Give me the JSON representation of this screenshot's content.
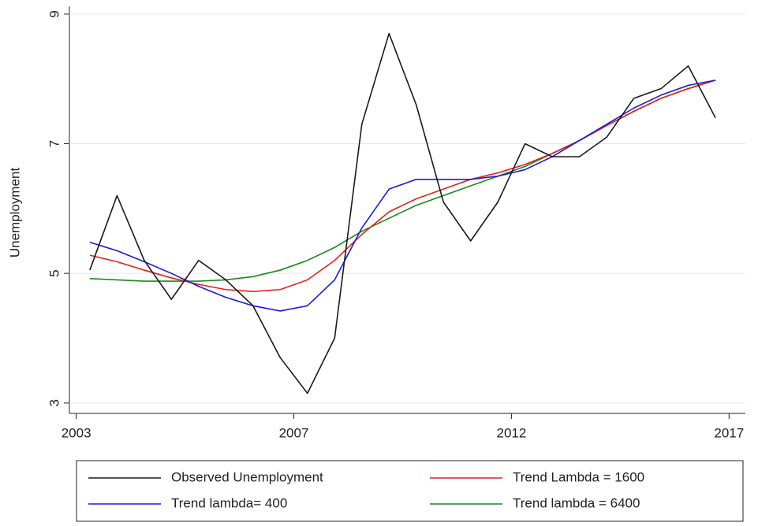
{
  "chart_data": {
    "type": "line",
    "y_label": "Unemployment",
    "x": [
      1,
      3,
      5,
      7,
      9,
      11,
      13,
      15,
      17,
      19,
      21,
      23,
      25,
      27,
      29,
      31,
      33,
      35,
      37,
      39,
      41,
      43,
      45,
      47
    ],
    "series": [
      {
        "name": "Observed Unemployment",
        "color": "#1a1a1a",
        "values": [
          5.05,
          6.2,
          5.2,
          4.6,
          5.2,
          4.9,
          4.5,
          3.7,
          3.15,
          4.0,
          7.3,
          8.7,
          7.6,
          6.1,
          5.5,
          6.1,
          7.0,
          6.8,
          6.8,
          7.1,
          7.7,
          7.85,
          8.2,
          7.4
        ]
      },
      {
        "name": "Trend Lambda = 1600",
        "color": "#e8201a",
        "values": [
          5.28,
          5.18,
          5.05,
          4.93,
          4.83,
          4.75,
          4.72,
          4.75,
          4.9,
          5.2,
          5.6,
          5.95,
          6.15,
          6.3,
          6.45,
          6.55,
          6.68,
          6.85,
          7.05,
          7.28,
          7.5,
          7.7,
          7.85,
          7.98
        ]
      },
      {
        "name": "Trend lambda= 400",
        "color": "#1a1ae0",
        "values": [
          5.48,
          5.35,
          5.18,
          5.0,
          4.8,
          4.63,
          4.5,
          4.42,
          4.5,
          4.9,
          5.7,
          6.3,
          6.45,
          6.45,
          6.45,
          6.5,
          6.6,
          6.8,
          7.05,
          7.3,
          7.55,
          7.75,
          7.9,
          7.98
        ]
      },
      {
        "name": "Trend lambda = 6400",
        "color": "#1a8a1a",
        "values": [
          4.92,
          4.9,
          4.88,
          4.88,
          4.88,
          4.9,
          4.95,
          5.05,
          5.2,
          5.4,
          5.65,
          5.85,
          6.05,
          6.2,
          6.35,
          6.5,
          6.65,
          6.85,
          7.05,
          7.28,
          7.5,
          7.7,
          7.85,
          7.98
        ]
      }
    ],
    "xlim": [
      -0.5,
      49.2
    ],
    "xticks": [
      {
        "value": 0,
        "label": "2003"
      },
      {
        "value": 16,
        "label": "2007"
      },
      {
        "value": 32,
        "label": "2012"
      },
      {
        "value": 48,
        "label": "2017"
      }
    ],
    "ylim": [
      2.84,
      9.12
    ],
    "yticks": [
      3,
      5,
      7,
      9
    ],
    "grid": true,
    "legend": "bottom"
  }
}
